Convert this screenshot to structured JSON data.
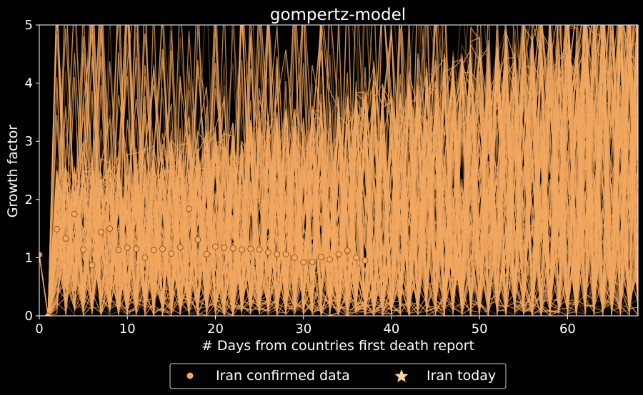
{
  "chart_data": {
    "type": "line",
    "title": "gompertz-model",
    "xlabel": "# Days from countries first death report",
    "ylabel": "Growth factor",
    "xlim": [
      0,
      68
    ],
    "ylim": [
      0,
      5
    ],
    "xticks": [
      0,
      10,
      20,
      30,
      40,
      50,
      60
    ],
    "yticks": [
      0,
      1,
      2,
      3,
      4,
      5
    ],
    "grid": false,
    "legend_position": "bottom-center",
    "colors": {
      "background": "#000000",
      "simulation": "#f4a860",
      "points": "#f4a860",
      "points_edge": "#7a4a1a",
      "axes": "#ffffff"
    },
    "series": [
      {
        "name": "Iran confirmed data",
        "marker": "circle",
        "x": [
          0,
          1,
          2,
          3,
          4,
          5,
          6,
          7,
          8,
          9,
          10,
          11,
          12,
          13,
          14,
          15,
          16,
          17,
          18,
          19,
          20,
          21,
          22,
          23,
          24,
          25,
          26,
          27,
          28,
          29,
          30,
          31,
          32,
          33,
          34,
          35,
          36,
          37
        ],
        "y": [
          1.05,
          0.0,
          1.49,
          1.33,
          1.75,
          1.14,
          0.87,
          1.44,
          1.5,
          1.13,
          1.17,
          1.15,
          1.0,
          1.13,
          1.15,
          1.07,
          1.18,
          1.84,
          1.31,
          1.06,
          1.19,
          1.17,
          1.16,
          1.14,
          1.15,
          1.14,
          1.09,
          1.06,
          1.06,
          1.0,
          0.92,
          0.93,
          1.01,
          0.97,
          1.06,
          1.12,
          1.0,
          0.95
        ]
      },
      {
        "name": "Iran today",
        "marker": "star",
        "x": [],
        "y": []
      }
    ],
    "simulation": {
      "description_count": 240,
      "opacity": 0.35
    },
    "legend": {
      "entries": [
        "Iran confirmed data",
        "Iran today"
      ]
    }
  }
}
